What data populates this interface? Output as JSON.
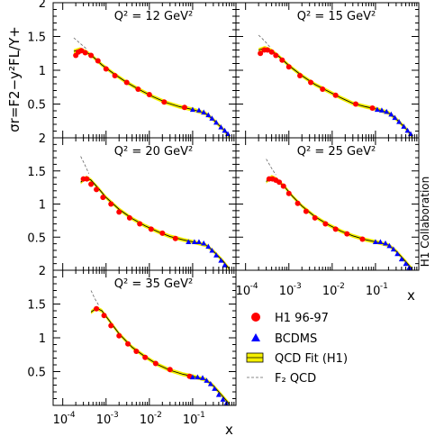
{
  "chart_data": [
    {
      "type": "scatter",
      "title": "Q² = 12 GeV²",
      "xlim": [
        6e-05,
        1.0
      ],
      "xscale": "log",
      "ylim": [
        0,
        2
      ],
      "h1": [
        [
          0.0002,
          1.22
        ],
        [
          0.00023,
          1.27
        ],
        [
          0.00027,
          1.29
        ],
        [
          0.00033,
          1.26
        ],
        [
          0.00045,
          1.22
        ],
        [
          0.00065,
          1.14
        ],
        [
          0.001,
          1.02
        ],
        [
          0.0016,
          0.92
        ],
        [
          0.003,
          0.82
        ],
        [
          0.0055,
          0.72
        ],
        [
          0.01,
          0.64
        ],
        [
          0.022,
          0.53
        ],
        [
          0.065,
          0.45
        ]
      ],
      "bcdms": [
        [
          0.1,
          0.42
        ],
        [
          0.14,
          0.41
        ],
        [
          0.18,
          0.38
        ],
        [
          0.23,
          0.34
        ],
        [
          0.28,
          0.29
        ],
        [
          0.35,
          0.23
        ],
        [
          0.45,
          0.16
        ],
        [
          0.55,
          0.11
        ],
        [
          0.65,
          0.06
        ]
      ],
      "fit": [
        [
          0.00018,
          1.28
        ],
        [
          0.00025,
          1.31
        ],
        [
          0.00035,
          1.27
        ],
        [
          0.0005,
          1.2
        ],
        [
          0.0008,
          1.08
        ],
        [
          0.0015,
          0.95
        ],
        [
          0.003,
          0.82
        ],
        [
          0.006,
          0.71
        ],
        [
          0.012,
          0.61
        ],
        [
          0.025,
          0.52
        ],
        [
          0.05,
          0.46
        ],
        [
          0.1,
          0.42
        ],
        [
          0.2,
          0.36
        ],
        [
          0.3,
          0.27
        ],
        [
          0.5,
          0.13
        ],
        [
          0.7,
          0.02
        ]
      ],
      "f2qcd": [
        [
          0.00018,
          1.48
        ],
        [
          0.00025,
          1.4
        ],
        [
          0.00035,
          1.32
        ]
      ]
    },
    {
      "type": "scatter",
      "title": "Q² = 15 GeV²",
      "xlim": [
        6e-05,
        1.0
      ],
      "xscale": "log",
      "ylim": [
        0,
        2
      ],
      "h1": [
        [
          0.00022,
          1.25
        ],
        [
          0.00027,
          1.3
        ],
        [
          0.00032,
          1.3
        ],
        [
          0.0004,
          1.27
        ],
        [
          0.0005,
          1.22
        ],
        [
          0.0007,
          1.15
        ],
        [
          0.001,
          1.05
        ],
        [
          0.0018,
          0.92
        ],
        [
          0.0032,
          0.82
        ],
        [
          0.006,
          0.72
        ],
        [
          0.012,
          0.63
        ],
        [
          0.035,
          0.5
        ],
        [
          0.085,
          0.44
        ]
      ],
      "bcdms": [
        [
          0.11,
          0.42
        ],
        [
          0.14,
          0.41
        ],
        [
          0.18,
          0.39
        ],
        [
          0.23,
          0.35
        ],
        [
          0.28,
          0.3
        ],
        [
          0.35,
          0.24
        ],
        [
          0.45,
          0.17
        ],
        [
          0.55,
          0.11
        ],
        [
          0.65,
          0.06
        ]
      ],
      "fit": [
        [
          0.0002,
          1.3
        ],
        [
          0.00028,
          1.33
        ],
        [
          0.0004,
          1.29
        ],
        [
          0.0006,
          1.2
        ],
        [
          0.001,
          1.07
        ],
        [
          0.002,
          0.92
        ],
        [
          0.004,
          0.79
        ],
        [
          0.008,
          0.69
        ],
        [
          0.015,
          0.6
        ],
        [
          0.03,
          0.51
        ],
        [
          0.06,
          0.46
        ],
        [
          0.1,
          0.43
        ],
        [
          0.2,
          0.37
        ],
        [
          0.3,
          0.28
        ],
        [
          0.5,
          0.14
        ],
        [
          0.7,
          0.02
        ]
      ],
      "f2qcd": [
        [
          0.0002,
          1.52
        ],
        [
          0.00028,
          1.43
        ],
        [
          0.00038,
          1.33
        ]
      ]
    },
    {
      "type": "scatter",
      "title": "Q² = 20 GeV²",
      "xlim": [
        6e-05,
        1.0
      ],
      "xscale": "log",
      "ylim": [
        0,
        2
      ],
      "h1": [
        [
          0.0003,
          1.38
        ],
        [
          0.00036,
          1.38
        ],
        [
          0.00045,
          1.3
        ],
        [
          0.0006,
          1.22
        ],
        [
          0.00085,
          1.1
        ],
        [
          0.0013,
          1.0
        ],
        [
          0.002,
          0.88
        ],
        [
          0.0035,
          0.79
        ],
        [
          0.006,
          0.7
        ],
        [
          0.011,
          0.62
        ],
        [
          0.02,
          0.56
        ],
        [
          0.04,
          0.48
        ]
      ],
      "bcdms": [
        [
          0.08,
          0.43
        ],
        [
          0.11,
          0.43
        ],
        [
          0.14,
          0.43
        ],
        [
          0.18,
          0.41
        ],
        [
          0.23,
          0.36
        ],
        [
          0.28,
          0.3
        ],
        [
          0.35,
          0.23
        ],
        [
          0.45,
          0.15
        ],
        [
          0.55,
          0.08
        ]
      ],
      "fit": [
        [
          0.00026,
          1.33
        ],
        [
          0.00035,
          1.4
        ],
        [
          0.00045,
          1.36
        ],
        [
          0.0007,
          1.22
        ],
        [
          0.001,
          1.1
        ],
        [
          0.002,
          0.92
        ],
        [
          0.004,
          0.78
        ],
        [
          0.008,
          0.67
        ],
        [
          0.016,
          0.58
        ],
        [
          0.03,
          0.51
        ],
        [
          0.06,
          0.46
        ],
        [
          0.1,
          0.43
        ],
        [
          0.2,
          0.38
        ],
        [
          0.3,
          0.29
        ],
        [
          0.5,
          0.14
        ],
        [
          0.7,
          0.02
        ]
      ],
      "f2qcd": [
        [
          0.00026,
          1.72
        ],
        [
          0.00032,
          1.6
        ],
        [
          0.0004,
          1.46
        ]
      ]
    },
    {
      "type": "scatter",
      "title": "Q² = 25 GeV²",
      "xlim": [
        6e-05,
        1.0
      ],
      "xscale": "log",
      "ylim": [
        0,
        2
      ],
      "h1": [
        [
          0.00035,
          1.38
        ],
        [
          0.00042,
          1.38
        ],
        [
          0.0005,
          1.36
        ],
        [
          0.0006,
          1.33
        ],
        [
          0.00075,
          1.27
        ],
        [
          0.001,
          1.16
        ],
        [
          0.0016,
          1.01
        ],
        [
          0.0025,
          0.89
        ],
        [
          0.004,
          0.79
        ],
        [
          0.007,
          0.7
        ],
        [
          0.012,
          0.62
        ],
        [
          0.022,
          0.55
        ],
        [
          0.05,
          0.47
        ]
      ],
      "bcdms": [
        [
          0.1,
          0.43
        ],
        [
          0.13,
          0.43
        ],
        [
          0.17,
          0.41
        ],
        [
          0.21,
          0.37
        ],
        [
          0.26,
          0.32
        ],
        [
          0.32,
          0.25
        ],
        [
          0.4,
          0.17
        ],
        [
          0.5,
          0.1
        ],
        [
          0.6,
          0.04
        ]
      ],
      "fit": [
        [
          0.0003,
          1.34
        ],
        [
          0.0004,
          1.41
        ],
        [
          0.0005,
          1.38
        ],
        [
          0.0008,
          1.26
        ],
        [
          0.0012,
          1.12
        ],
        [
          0.002,
          0.97
        ],
        [
          0.004,
          0.81
        ],
        [
          0.008,
          0.69
        ],
        [
          0.016,
          0.59
        ],
        [
          0.03,
          0.52
        ],
        [
          0.06,
          0.46
        ],
        [
          0.1,
          0.43
        ],
        [
          0.2,
          0.38
        ],
        [
          0.3,
          0.29
        ],
        [
          0.5,
          0.13
        ],
        [
          0.7,
          0.02
        ]
      ],
      "f2qcd": [
        [
          0.0003,
          1.68
        ],
        [
          0.0004,
          1.54
        ],
        [
          0.0005,
          1.44
        ]
      ]
    },
    {
      "type": "scatter",
      "title": "Q² = 35 GeV²",
      "xlim": [
        6e-05,
        1.0
      ],
      "xscale": "log",
      "ylim": [
        0,
        2
      ],
      "h1": [
        [
          0.0006,
          1.43
        ],
        [
          0.0009,
          1.33
        ],
        [
          0.0013,
          1.18
        ],
        [
          0.002,
          1.03
        ],
        [
          0.0032,
          0.91
        ],
        [
          0.005,
          0.8
        ],
        [
          0.008,
          0.71
        ],
        [
          0.014,
          0.62
        ],
        [
          0.03,
          0.53
        ],
        [
          0.085,
          0.43
        ]
      ],
      "bcdms": [
        [
          0.1,
          0.42
        ],
        [
          0.13,
          0.42
        ],
        [
          0.17,
          0.41
        ],
        [
          0.21,
          0.37
        ],
        [
          0.26,
          0.32
        ],
        [
          0.32,
          0.25
        ],
        [
          0.4,
          0.16
        ],
        [
          0.5,
          0.09
        ],
        [
          0.6,
          0.03
        ]
      ],
      "fit": [
        [
          0.00045,
          1.38
        ],
        [
          0.0006,
          1.44
        ],
        [
          0.0008,
          1.4
        ],
        [
          0.0012,
          1.25
        ],
        [
          0.002,
          1.06
        ],
        [
          0.004,
          0.86
        ],
        [
          0.008,
          0.72
        ],
        [
          0.016,
          0.6
        ],
        [
          0.03,
          0.52
        ],
        [
          0.06,
          0.46
        ],
        [
          0.1,
          0.43
        ],
        [
          0.2,
          0.38
        ],
        [
          0.3,
          0.29
        ],
        [
          0.5,
          0.13
        ],
        [
          0.7,
          0.02
        ]
      ],
      "f2qcd": [
        [
          0.00045,
          1.7
        ],
        [
          0.00055,
          1.58
        ],
        [
          0.00068,
          1.48
        ]
      ]
    }
  ],
  "ylabel": "σr=F2−y²FL/Y+",
  "xlabel": "x",
  "y_ticks": [
    "0.5",
    "1",
    "1.5",
    "2"
  ],
  "x_tick_labels": {
    "e4": "10",
    "e3": "10",
    "e2": "10",
    "e1": "10",
    "exp4": "-4",
    "exp3": "-3",
    "exp2": "-2",
    "exp1": "-1"
  },
  "collaboration": "H1 Collaboration",
  "legend": {
    "h1": "H1 96-97",
    "bcdms": "BCDMS",
    "fit": "QCD Fit (H1)",
    "f2": "F₂ QCD"
  },
  "colors": {
    "h1": "#ff0000",
    "bcdms": "#0000ff",
    "band": "#f5f000"
  }
}
